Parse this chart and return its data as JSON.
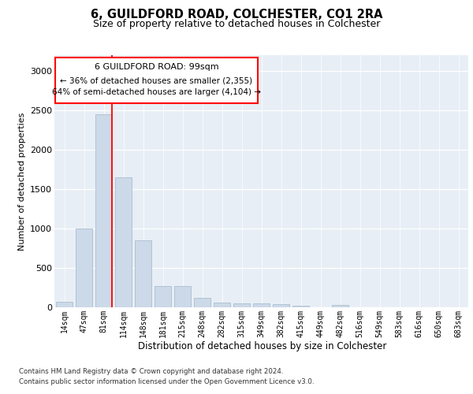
{
  "title1": "6, GUILDFORD ROAD, COLCHESTER, CO1 2RA",
  "title2": "Size of property relative to detached houses in Colchester",
  "xlabel": "Distribution of detached houses by size in Colchester",
  "ylabel": "Number of detached properties",
  "categories": [
    "14sqm",
    "47sqm",
    "81sqm",
    "114sqm",
    "148sqm",
    "181sqm",
    "215sqm",
    "248sqm",
    "282sqm",
    "315sqm",
    "349sqm",
    "382sqm",
    "415sqm",
    "449sqm",
    "482sqm",
    "516sqm",
    "549sqm",
    "583sqm",
    "616sqm",
    "650sqm",
    "683sqm"
  ],
  "values": [
    75,
    1000,
    2450,
    1650,
    850,
    275,
    275,
    120,
    60,
    50,
    50,
    40,
    20,
    0,
    30,
    0,
    0,
    0,
    0,
    0,
    0
  ],
  "bar_color": "#ccd9e8",
  "bar_edge_color": "#a8bfd0",
  "annotation_title": "6 GUILDFORD ROAD: 99sqm",
  "annotation_line1": "← 36% of detached houses are smaller (2,355)",
  "annotation_line2": "64% of semi-detached houses are larger (4,104) →",
  "ylim": [
    0,
    3200
  ],
  "yticks": [
    0,
    500,
    1000,
    1500,
    2000,
    2500,
    3000
  ],
  "footer1": "Contains HM Land Registry data © Crown copyright and database right 2024.",
  "footer2": "Contains public sector information licensed under the Open Government Licence v3.0.",
  "plot_bg_color": "#e8eef5"
}
